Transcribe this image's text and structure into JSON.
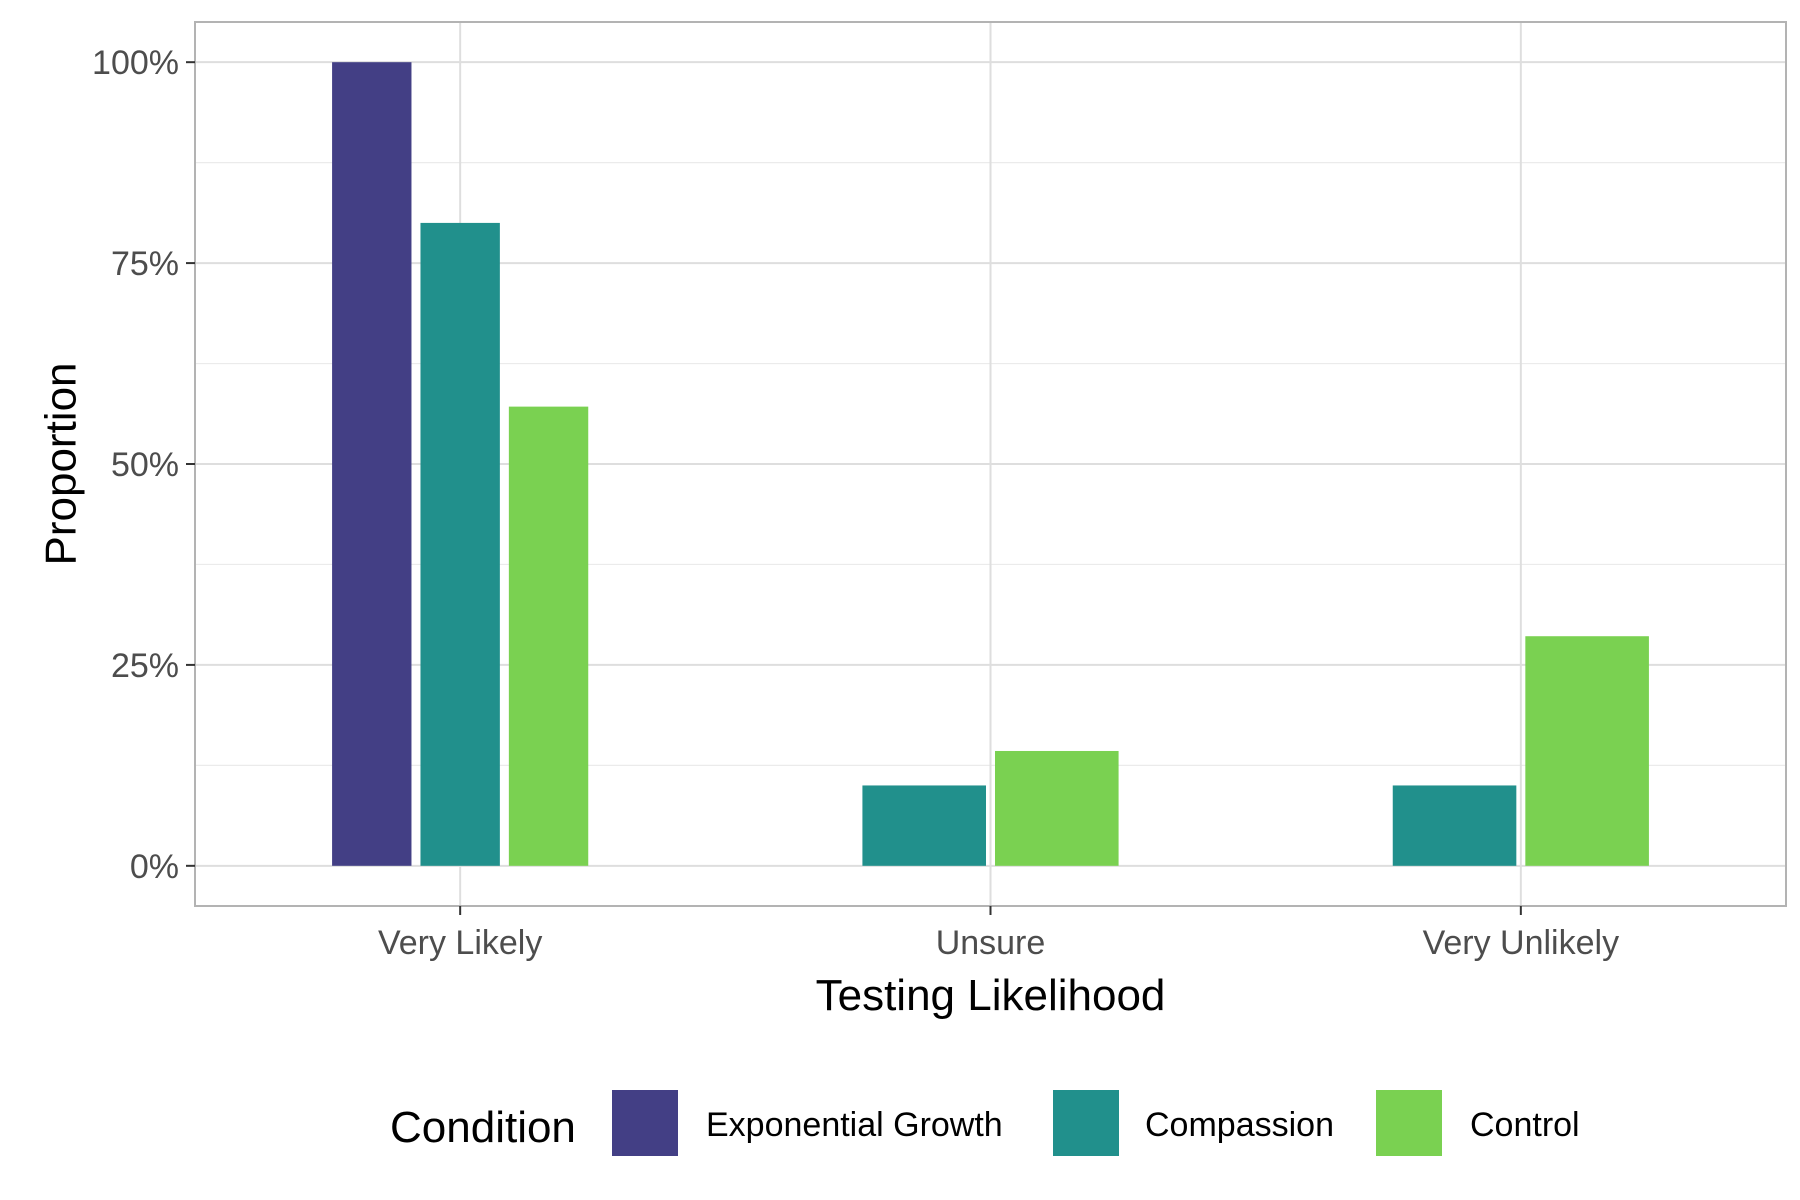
{
  "chart_data": {
    "type": "bar",
    "title": "",
    "xlabel": "Testing Likelihood",
    "ylabel": "Proportion",
    "categories": [
      "Very Likely",
      "Unsure",
      "Very Unlikely"
    ],
    "series": [
      {
        "name": "Exponential Growth",
        "color": "#433F85",
        "values": [
          1.0,
          0,
          0
        ]
      },
      {
        "name": "Compassion",
        "color": "#21908C",
        "values": [
          0.8,
          0.1,
          0.1
        ]
      },
      {
        "name": "Control",
        "color": "#7AD151",
        "values": [
          0.5714,
          0.1429,
          0.2857
        ]
      }
    ],
    "ylim": [
      -0.05,
      1.05
    ],
    "y_ticks": [
      0,
      0.25,
      0.5,
      0.75,
      1.0
    ],
    "y_tick_labels": [
      "0%",
      "25%",
      "50%",
      "75%",
      "100%"
    ],
    "grid": true,
    "legend": {
      "title": "Condition",
      "position": "bottom"
    }
  }
}
